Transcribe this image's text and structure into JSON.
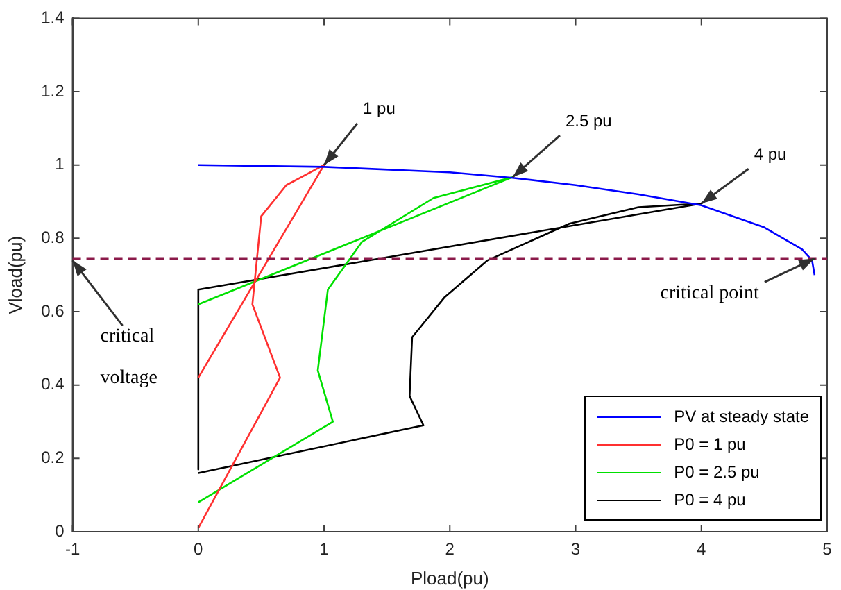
{
  "chart_data": {
    "type": "line",
    "xlabel": "Pload(pu)",
    "ylabel": "Vload(pu)",
    "xlim": [
      -1,
      5
    ],
    "xticks": [
      -1,
      0,
      1,
      2,
      3,
      4,
      5
    ],
    "ylim": [
      0,
      1.4
    ],
    "yticks": [
      0,
      0.2,
      0.4,
      0.6,
      0.8,
      1,
      1.2,
      1.4
    ],
    "grid": false,
    "legend": "bottom right",
    "marker": "none",
    "line_style": "solid",
    "series": [
      {
        "name": "PV at steady state",
        "color": "#0000ff",
        "x": [
          0,
          1,
          2,
          2.5,
          3,
          3.5,
          4,
          4.5,
          4.8,
          4.88,
          4.9
        ],
        "values": [
          1,
          0.995,
          0.98,
          0.965,
          0.945,
          0.92,
          0.89,
          0.83,
          0.77,
          0.74,
          0.7
        ]
      },
      {
        "name": "P0 = 1 pu",
        "color": "#ff3030",
        "x": [
          0,
          0.65,
          0.43,
          0.5,
          0.7,
          1,
          0
        ],
        "values": [
          0.01,
          0.42,
          0.62,
          0.86,
          0.945,
          1,
          0.42
        ]
      },
      {
        "name": "P0 = 2.5 pu",
        "color": "#00e000",
        "x": [
          0,
          1.07,
          0.95,
          1.03,
          1.3,
          1.87,
          2.5,
          0,
          0
        ],
        "values": [
          0.08,
          0.3,
          0.44,
          0.66,
          0.79,
          0.91,
          0.967,
          0.62,
          0.62
        ]
      },
      {
        "name": "P0 = 4 pu",
        "color": "#000000",
        "x": [
          0,
          1.79,
          1.68,
          1.7,
          1.96,
          2.3,
          2.95,
          3.5,
          4,
          0,
          0
        ],
        "values": [
          0.16,
          0.29,
          0.37,
          0.53,
          0.64,
          0.74,
          0.84,
          0.885,
          0.895,
          0.66,
          0.17
        ]
      }
    ],
    "ref_lines": [
      {
        "axis": "y",
        "value": 0.745,
        "color": "#8b1a4a",
        "line_style": "dashed"
      }
    ],
    "annotations": [
      {
        "text": "1 pu",
        "x": 1,
        "y": 1
      },
      {
        "text": "2.5 pu",
        "x": 2.5,
        "y": 0.967
      },
      {
        "text": "4 pu",
        "x": 4,
        "y": 0.895
      },
      {
        "text": "critical voltage",
        "x": -1,
        "y": 0.74
      },
      {
        "text": "critical point",
        "x": 4.9,
        "y": 0.745
      }
    ]
  }
}
